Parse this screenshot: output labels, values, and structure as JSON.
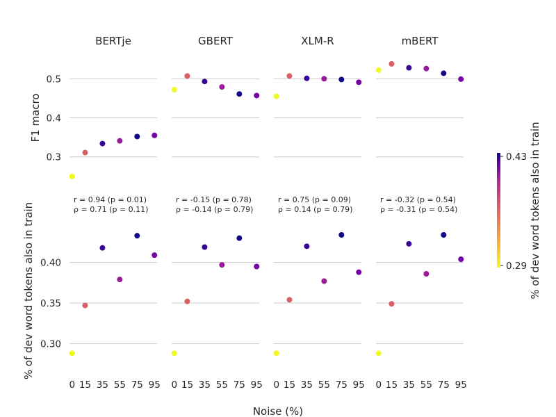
{
  "chart_data": {
    "type": "scatter",
    "panels": [
      "BERTje",
      "GBERT",
      "XLM-R",
      "mBERT"
    ],
    "x": [
      0,
      15,
      35,
      55,
      75,
      95
    ],
    "xlabel": "Noise (%)",
    "rows": [
      {
        "ylabel": "F1 macro",
        "yticks": [
          "0.3",
          "0.4",
          "0.5"
        ],
        "ytick_values": [
          0.3,
          0.4,
          0.5
        ],
        "ylim": [
          0.255,
          0.545
        ],
        "series": [
          {
            "panel": "BERTje",
            "values": [
              0.25,
              0.311,
              0.334,
              0.341,
              0.352,
              0.355
            ]
          },
          {
            "panel": "GBERT",
            "values": [
              0.472,
              0.507,
              0.493,
              0.479,
              0.461,
              0.457
            ]
          },
          {
            "panel": "XLM-R",
            "values": [
              0.455,
              0.507,
              0.501,
              0.5,
              0.498,
              0.491
            ]
          },
          {
            "panel": "mBERT",
            "values": [
              0.522,
              0.538,
              0.528,
              0.526,
              0.514,
              0.499
            ]
          }
        ]
      },
      {
        "ylabel": "% of dev word tokens also in train",
        "yticks": [
          "0.30",
          "0.35",
          "0.40"
        ],
        "ytick_values": [
          0.3,
          0.35,
          0.4
        ],
        "ylim": [
          0.278,
          0.452
        ],
        "series": [
          {
            "panel": "BERTje",
            "values": [
              0.288,
              0.347,
              0.418,
              0.379,
              0.433,
              0.409
            ]
          },
          {
            "panel": "GBERT",
            "values": [
              0.288,
              0.352,
              0.419,
              0.397,
              0.43,
              0.395
            ]
          },
          {
            "panel": "XLM-R",
            "values": [
              0.288,
              0.354,
              0.42,
              0.377,
              0.434,
              0.388
            ]
          },
          {
            "panel": "mBERT",
            "values": [
              0.288,
              0.349,
              0.423,
              0.386,
              0.434,
              0.404
            ]
          }
        ]
      }
    ],
    "annotations": [
      {
        "panel": "BERTje",
        "line1": "r = 0.94 (p = 0.01)",
        "line2": "ρ = 0.71 (p = 0.11)"
      },
      {
        "panel": "GBERT",
        "line1": "r = -0.15 (p = 0.78)",
        "line2": "ρ = -0.14 (p = 0.79)"
      },
      {
        "panel": "XLM-R",
        "line1": "r = 0.75 (p = 0.09)",
        "line2": "ρ = 0.14 (p = 0.79)"
      },
      {
        "panel": "mBERT",
        "line1": "r = -0.32 (p = 0.54)",
        "line2": "ρ = -0.31 (p = 0.54)"
      }
    ],
    "color_values": [
      0.288,
      0.35,
      0.42,
      0.385,
      0.433,
      0.4
    ],
    "colorbar": {
      "label": "% of dev word tokens also in train",
      "min_label": "0.29",
      "max_label": "0.43",
      "min": 0.288,
      "max": 0.434,
      "colormap": "plasma"
    },
    "grid": true,
    "grid_axis": "y",
    "legend": "none"
  }
}
